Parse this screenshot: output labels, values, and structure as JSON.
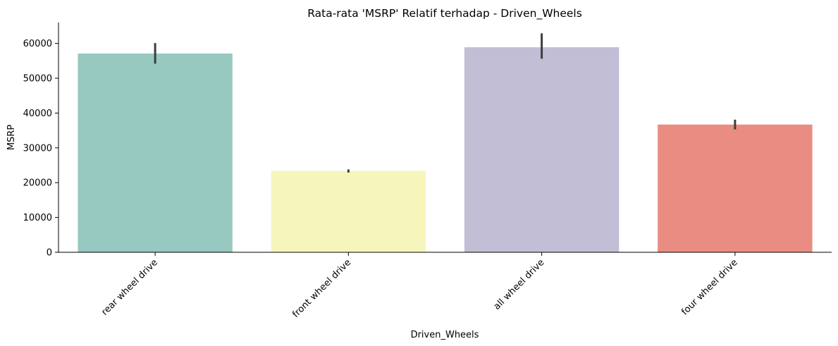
{
  "chart_data": {
    "type": "bar",
    "title": "Rata-rata 'MSRP' Relatif terhadap - Driven_Wheels",
    "xlabel": "Driven_Wheels",
    "ylabel": "MSRP",
    "categories": [
      "rear wheel drive",
      "front wheel drive",
      "all wheel drive",
      "four wheel drive"
    ],
    "values": [
      57100,
      23400,
      58900,
      36700
    ],
    "error_bars": [
      {
        "low": 54200,
        "high": 60100
      },
      {
        "low": 22900,
        "high": 23800
      },
      {
        "low": 55600,
        "high": 62900
      },
      {
        "low": 35300,
        "high": 38100
      }
    ],
    "colors": [
      "#97c9c1",
      "#f6f6bc",
      "#c1bed5",
      "#e98d82"
    ],
    "error_color": "#3d3d3d",
    "ylim": [
      0,
      66000
    ],
    "yticks": [
      0,
      10000,
      20000,
      30000,
      40000,
      50000,
      60000
    ],
    "ytick_labels": [
      "0",
      "10000",
      "20000",
      "30000",
      "40000",
      "50000",
      "60000"
    ],
    "xtick_rotation": -45,
    "grid": false,
    "legend": "none"
  }
}
